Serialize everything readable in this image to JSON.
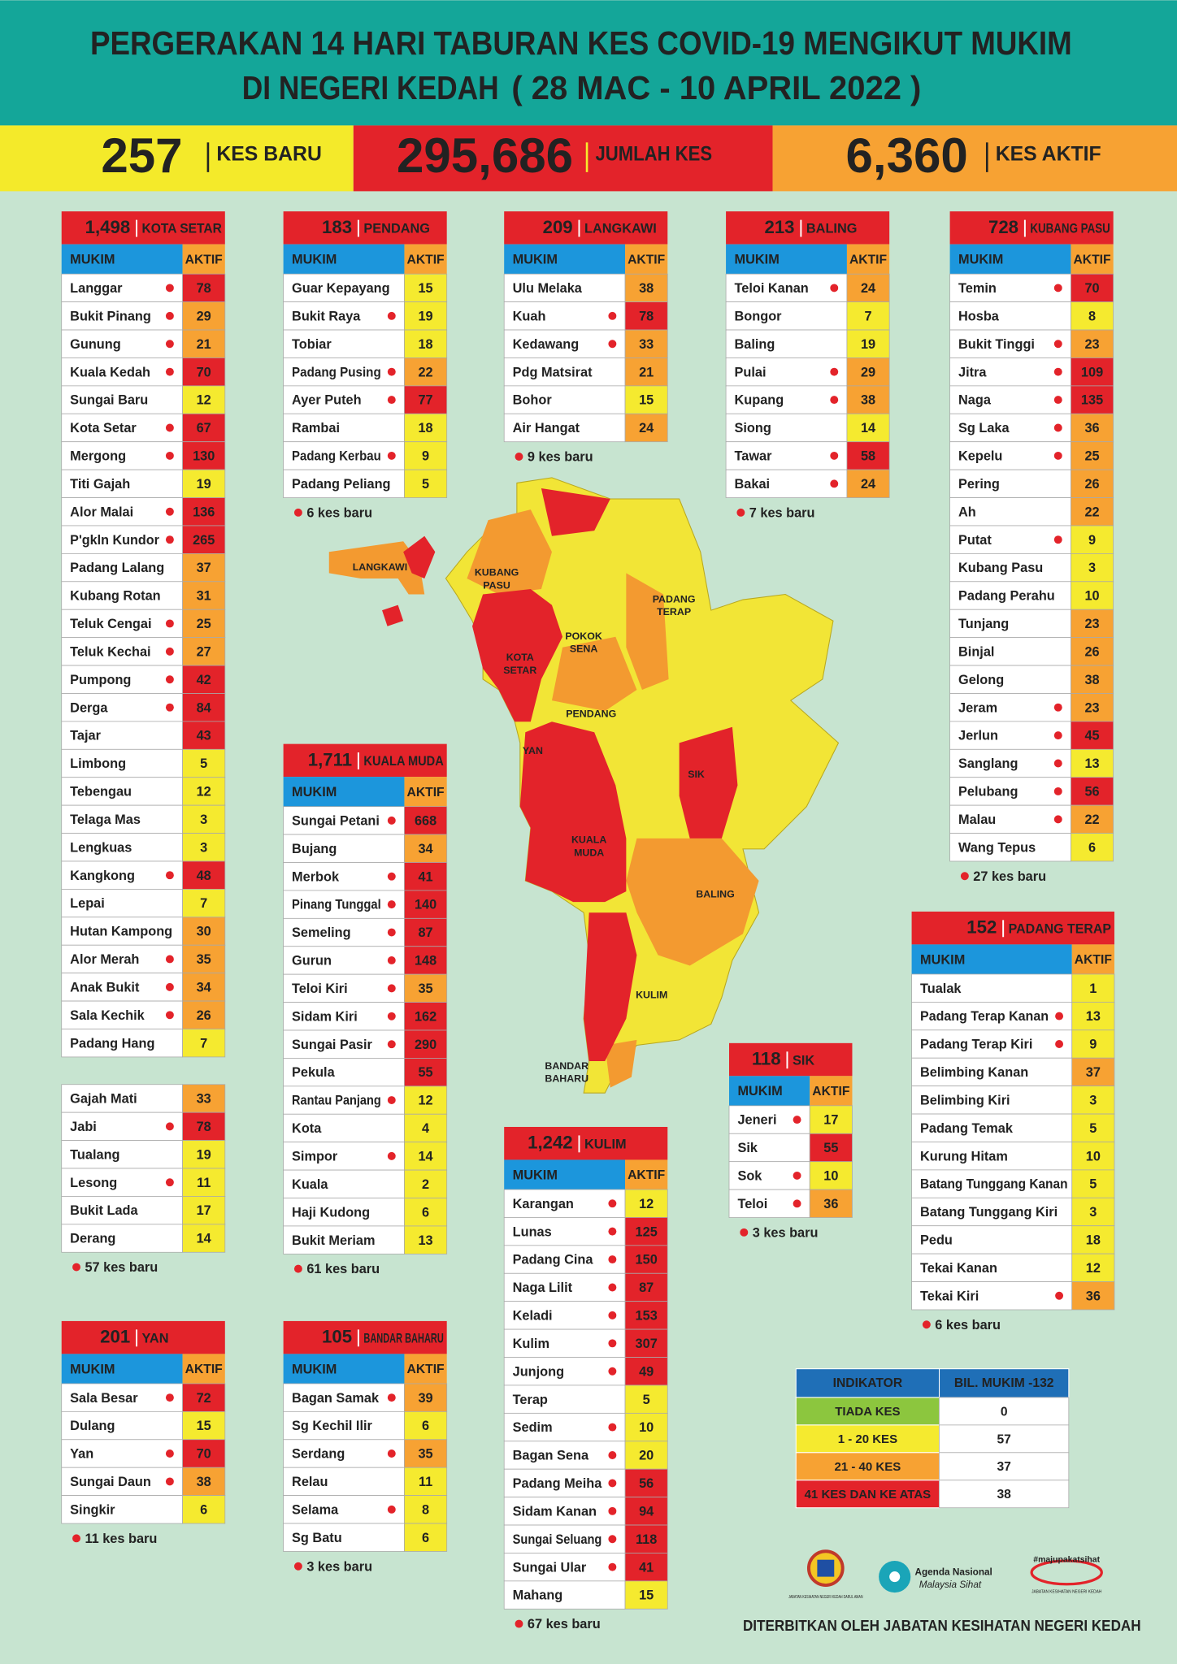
{
  "header": {
    "title_line1": "PERGERAKAN 14 HARI TABURAN KES COVID-19 MENGIKUT MUKIM",
    "title_line2": "DI NEGERI KEDAH",
    "date_range": "( 28 MAC - 10 APRIL 2022 )"
  },
  "summary": [
    {
      "value": "257",
      "label": "KES BARU"
    },
    {
      "value": "295,686",
      "label": "JUMLAH KES"
    },
    {
      "value": "6,360",
      "label": "KES AKTIF"
    }
  ],
  "column_headers": [
    "MUKIM",
    "AKTIF"
  ],
  "districts": [
    {
      "total": "1,498",
      "name": "KOTA SETAR",
      "rows": [
        [
          "Langgar",
          78,
          true,
          "#e3232a"
        ],
        [
          "Bukit Pinang",
          29,
          true,
          "#f7a233"
        ],
        [
          "Gunung",
          21,
          true,
          "#f7a233"
        ],
        [
          "Kuala Kedah",
          70,
          true,
          "#e3232a"
        ],
        [
          "Sungai Baru",
          12,
          false,
          "#f5ea2f"
        ],
        [
          "Kota Setar",
          67,
          true,
          "#e3232a"
        ],
        [
          "Mergong",
          130,
          true,
          "#e3232a"
        ],
        [
          "Titi Gajah",
          19,
          false,
          "#f5ea2f"
        ],
        [
          "Alor Malai",
          136,
          true,
          "#e3232a"
        ],
        [
          "P'gkln Kundor",
          265,
          true,
          "#e3232a"
        ],
        [
          "Padang Lalang",
          37,
          false,
          "#f7a233"
        ],
        [
          "Kubang Rotan",
          31,
          false,
          "#f7a233"
        ],
        [
          "Teluk Cengai",
          25,
          true,
          "#f7a233"
        ],
        [
          "Teluk Kechai",
          27,
          true,
          "#f7a233"
        ],
        [
          "Pumpong",
          42,
          true,
          "#e3232a"
        ],
        [
          "Derga",
          84,
          true,
          "#e3232a"
        ],
        [
          "Tajar",
          43,
          false,
          "#e3232a"
        ],
        [
          "Limbong",
          5,
          false,
          "#f5ea2f"
        ],
        [
          "Tebengau",
          12,
          false,
          "#f5ea2f"
        ],
        [
          "Telaga Mas",
          3,
          false,
          "#f5ea2f"
        ],
        [
          "Lengkuas",
          3,
          false,
          "#f5ea2f"
        ],
        [
          "Kangkong",
          48,
          true,
          "#e3232a"
        ],
        [
          "Lepai",
          7,
          false,
          "#f5ea2f"
        ],
        [
          "Hutan Kampong",
          30,
          false,
          "#f7a233"
        ],
        [
          "Alor Merah",
          35,
          true,
          "#f7a233"
        ],
        [
          "Anak Bukit",
          34,
          true,
          "#f7a233"
        ],
        [
          "Sala Kechik",
          26,
          true,
          "#f7a233"
        ],
        [
          "Padang Hang",
          7,
          false,
          "#f5ea2f"
        ]
      ],
      "extra_rows": [
        [
          "Gajah Mati",
          33,
          false,
          "#f7a233"
        ],
        [
          "Jabi",
          78,
          true,
          "#e3232a"
        ],
        [
          "Tualang",
          19,
          false,
          "#f5ea2f"
        ],
        [
          "Lesong",
          11,
          true,
          "#f5ea2f"
        ],
        [
          "Bukit Lada",
          17,
          false,
          "#f5ea2f"
        ],
        [
          "Derang",
          14,
          false,
          "#f5ea2f"
        ]
      ],
      "new_cases": "57 kes baru"
    },
    {
      "total": "183",
      "name": "PENDANG",
      "rows": [
        [
          "Guar Kepayang",
          15,
          false,
          "#f5ea2f"
        ],
        [
          "Bukit Raya",
          19,
          true,
          "#f5ea2f"
        ],
        [
          "Tobiar",
          18,
          false,
          "#f5ea2f"
        ],
        [
          "Padang Pusing",
          22,
          true,
          "#f7a233"
        ],
        [
          "Ayer Puteh",
          77,
          true,
          "#e3232a"
        ],
        [
          "Rambai",
          18,
          false,
          "#f5ea2f"
        ],
        [
          "Padang Kerbau",
          9,
          true,
          "#f5ea2f"
        ],
        [
          "Padang Peliang",
          5,
          false,
          "#f5ea2f"
        ]
      ],
      "new_cases": "6 kes baru"
    },
    {
      "total": "209",
      "name": "LANGKAWI",
      "rows": [
        [
          "Ulu Melaka",
          38,
          false,
          "#f7a233"
        ],
        [
          "Kuah",
          78,
          true,
          "#e3232a"
        ],
        [
          "Kedawang",
          33,
          true,
          "#f7a233"
        ],
        [
          "Pdg Matsirat",
          21,
          false,
          "#f7a233"
        ],
        [
          "Bohor",
          15,
          false,
          "#f5ea2f"
        ],
        [
          "Air Hangat",
          24,
          false,
          "#f7a233"
        ]
      ],
      "new_cases": "9 kes baru"
    },
    {
      "total": "213",
      "name": "BALING",
      "rows": [
        [
          "Teloi Kanan",
          24,
          true,
          "#f7a233"
        ],
        [
          "Bongor",
          7,
          false,
          "#f5ea2f"
        ],
        [
          "Baling",
          19,
          false,
          "#f5ea2f"
        ],
        [
          "Pulai",
          29,
          true,
          "#f7a233"
        ],
        [
          "Kupang",
          38,
          true,
          "#f7a233"
        ],
        [
          "Siong",
          14,
          false,
          "#f5ea2f"
        ],
        [
          "Tawar",
          58,
          true,
          "#e3232a"
        ],
        [
          "Bakai",
          24,
          true,
          "#f7a233"
        ]
      ],
      "new_cases": "7 kes baru"
    },
    {
      "total": "728",
      "name": "KUBANG PASU",
      "rows": [
        [
          "Temin",
          70,
          true,
          "#e3232a"
        ],
        [
          "Hosba",
          8,
          false,
          "#f5ea2f"
        ],
        [
          "Bukit Tinggi",
          23,
          true,
          "#f7a233"
        ],
        [
          "Jitra",
          109,
          true,
          "#e3232a"
        ],
        [
          "Naga",
          135,
          true,
          "#e3232a"
        ],
        [
          "Sg Laka",
          36,
          true,
          "#f7a233"
        ],
        [
          "Kepelu",
          25,
          true,
          "#f7a233"
        ],
        [
          "Pering",
          26,
          false,
          "#f7a233"
        ],
        [
          "Ah",
          22,
          false,
          "#f7a233"
        ],
        [
          "Putat",
          9,
          true,
          "#f5ea2f"
        ],
        [
          "Kubang Pasu",
          3,
          false,
          "#f5ea2f"
        ],
        [
          "Padang Perahu",
          10,
          false,
          "#f5ea2f"
        ],
        [
          "Tunjang",
          23,
          false,
          "#f7a233"
        ],
        [
          "Binjal",
          26,
          false,
          "#f7a233"
        ],
        [
          "Gelong",
          38,
          false,
          "#f7a233"
        ],
        [
          "Jeram",
          23,
          true,
          "#f7a233"
        ],
        [
          "Jerlun",
          45,
          true,
          "#e3232a"
        ],
        [
          "Sanglang",
          13,
          true,
          "#f5ea2f"
        ],
        [
          "Pelubang",
          56,
          true,
          "#e3232a"
        ],
        [
          "Malau",
          22,
          true,
          "#f7a233"
        ],
        [
          "Wang Tepus",
          6,
          false,
          "#f5ea2f"
        ]
      ],
      "new_cases": "27 kes baru"
    },
    {
      "total": "1,711",
      "name": "KUALA MUDA",
      "rows": [
        [
          "Sungai Petani",
          668,
          true,
          "#e3232a"
        ],
        [
          "Bujang",
          34,
          false,
          "#f7a233"
        ],
        [
          "Merbok",
          41,
          true,
          "#e3232a"
        ],
        [
          "Pinang Tunggal",
          140,
          true,
          "#e3232a"
        ],
        [
          "Semeling",
          87,
          true,
          "#e3232a"
        ],
        [
          "Gurun",
          148,
          true,
          "#e3232a"
        ],
        [
          "Teloi Kiri",
          35,
          true,
          "#f7a233"
        ],
        [
          "Sidam Kiri",
          162,
          true,
          "#e3232a"
        ],
        [
          "Sungai Pasir",
          290,
          true,
          "#e3232a"
        ],
        [
          "Pekula",
          55,
          false,
          "#e3232a"
        ],
        [
          "Rantau Panjang",
          12,
          true,
          "#f5ea2f"
        ],
        [
          "Kota",
          4,
          false,
          "#f5ea2f"
        ],
        [
          "Simpor",
          14,
          true,
          "#f5ea2f"
        ],
        [
          "Kuala",
          2,
          false,
          "#f5ea2f"
        ],
        [
          "Haji Kudong",
          6,
          false,
          "#f5ea2f"
        ],
        [
          "Bukit Meriam",
          13,
          false,
          "#f5ea2f"
        ]
      ],
      "new_cases": "61 kes baru"
    },
    {
      "total": "152",
      "name": "PADANG TERAP",
      "rows": [
        [
          "Tualak",
          1,
          false,
          "#f5ea2f"
        ],
        [
          "Padang Terap Kanan",
          13,
          true,
          "#f5ea2f"
        ],
        [
          "Padang Terap Kiri",
          9,
          true,
          "#f5ea2f"
        ],
        [
          "Belimbing Kanan",
          37,
          false,
          "#f7a233"
        ],
        [
          "Belimbing Kiri",
          3,
          false,
          "#f5ea2f"
        ],
        [
          "Padang Temak",
          5,
          false,
          "#f5ea2f"
        ],
        [
          "Kurung Hitam",
          10,
          false,
          "#f5ea2f"
        ],
        [
          "Batang Tunggang Kanan",
          5,
          false,
          "#f5ea2f"
        ],
        [
          "Batang Tunggang Kiri",
          3,
          false,
          "#f5ea2f"
        ],
        [
          "Pedu",
          18,
          false,
          "#f5ea2f"
        ],
        [
          "Tekai Kanan",
          12,
          false,
          "#f5ea2f"
        ],
        [
          "Tekai Kiri",
          36,
          true,
          "#f7a233"
        ]
      ],
      "new_cases": "6 kes baru"
    },
    {
      "total": "118",
      "name": "SIK",
      "rows": [
        [
          "Jeneri",
          17,
          true,
          "#f5ea2f"
        ],
        [
          "Sik",
          55,
          false,
          "#e3232a"
        ],
        [
          "Sok",
          10,
          true,
          "#f5ea2f"
        ],
        [
          "Teloi",
          36,
          true,
          "#f7a233"
        ]
      ],
      "new_cases": "3 kes baru"
    },
    {
      "total": "201",
      "name": "YAN",
      "rows": [
        [
          "Sala Besar",
          72,
          true,
          "#e3232a"
        ],
        [
          "Dulang",
          15,
          false,
          "#f5ea2f"
        ],
        [
          "Yan",
          70,
          true,
          "#e3232a"
        ],
        [
          "Sungai Daun",
          38,
          true,
          "#f7a233"
        ],
        [
          "Singkir",
          6,
          false,
          "#f5ea2f"
        ]
      ],
      "new_cases": "11 kes baru"
    },
    {
      "total": "105",
      "name": "BANDAR BAHARU",
      "rows": [
        [
          "Bagan Samak",
          39,
          true,
          "#f7a233"
        ],
        [
          "Sg Kechil Ilir",
          6,
          false,
          "#f5ea2f"
        ],
        [
          "Serdang",
          35,
          true,
          "#f7a233"
        ],
        [
          "Relau",
          11,
          false,
          "#f5ea2f"
        ],
        [
          "Selama",
          8,
          true,
          "#f5ea2f"
        ],
        [
          "Sg Batu",
          6,
          false,
          "#f5ea2f"
        ]
      ],
      "new_cases": "3 kes baru"
    },
    {
      "total": "1,242",
      "name": "KULIM",
      "rows": [
        [
          "Karangan",
          12,
          true,
          "#f5ea2f"
        ],
        [
          "Lunas",
          125,
          true,
          "#e3232a"
        ],
        [
          "Padang Cina",
          150,
          true,
          "#e3232a"
        ],
        [
          "Naga Lilit",
          87,
          true,
          "#e3232a"
        ],
        [
          "Keladi",
          153,
          true,
          "#e3232a"
        ],
        [
          "Kulim",
          307,
          true,
          "#e3232a"
        ],
        [
          "Junjong",
          49,
          true,
          "#e3232a"
        ],
        [
          "Terap",
          5,
          false,
          "#f5ea2f"
        ],
        [
          "Sedim",
          10,
          true,
          "#f5ea2f"
        ],
        [
          "Bagan Sena",
          20,
          true,
          "#f5ea2f"
        ],
        [
          "Padang Meiha",
          56,
          true,
          "#e3232a"
        ],
        [
          "Sidam Kanan",
          94,
          true,
          "#e3232a"
        ],
        [
          "Sungai Seluang",
          118,
          true,
          "#e3232a"
        ],
        [
          "Sungai Ular",
          41,
          true,
          "#e3232a"
        ],
        [
          "Mahang",
          15,
          false,
          "#f5ea2f"
        ]
      ],
      "new_cases": "67 kes baru"
    }
  ],
  "legend": {
    "headers": [
      "INDIKATOR",
      "BIL. MUKIM -132"
    ],
    "rows": [
      [
        "TIADA KES",
        0,
        "#8cc63e"
      ],
      [
        "1 - 20 KES",
        57,
        "#f5ea2f"
      ],
      [
        "21 - 40 KES",
        37,
        "#f7a233"
      ],
      [
        "41 KES DAN KE ATAS",
        38,
        "#e3232a"
      ]
    ]
  },
  "map_labels": [
    [
      "LANGKAWI"
    ],
    [
      "KUBANG",
      "PASU"
    ],
    [
      "PADANG",
      "TERAP"
    ],
    [
      "POKOK",
      "SENA"
    ],
    [
      "KOTA",
      "SETAR"
    ],
    [
      "PENDANG"
    ],
    [
      "YAN"
    ],
    [
      "SIK"
    ],
    [
      "KUALA",
      "MUDA"
    ],
    [
      "BALING"
    ],
    [
      "KULIM"
    ],
    [
      "BANDAR",
      "BAHARU"
    ]
  ],
  "logos": {
    "jkn": "JABATAN KESIHATAN NEGERI KEDAH DARUL AMAN",
    "agenda": "Agenda Nasional",
    "sihat": "Malaysia Sihat",
    "hashtag": "#majupakatsihat",
    "jkn2": "JABATAN KESIHATAN NEGERI KEDAH"
  },
  "footer": "DITERBITKAN OLEH JABATAN KESIHATAN NEGERI KEDAH"
}
